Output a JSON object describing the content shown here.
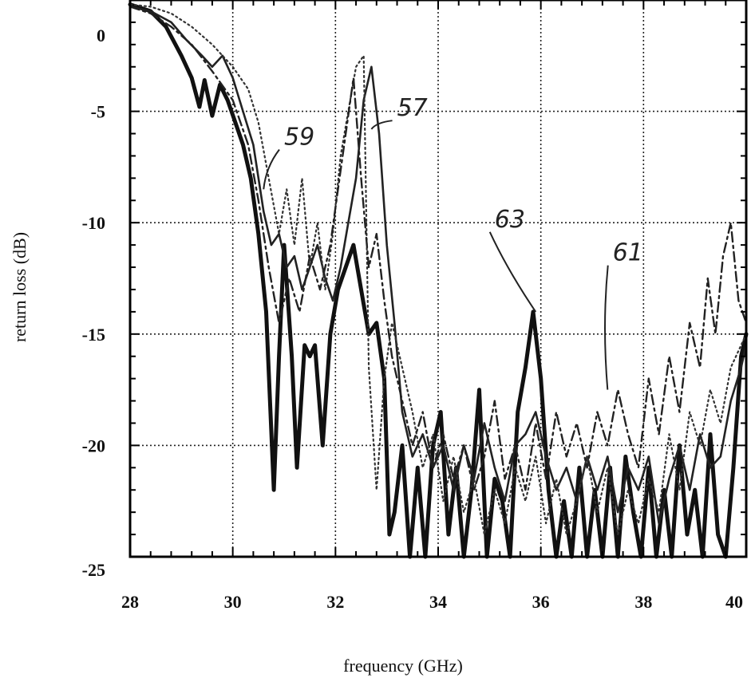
{
  "chart_data": {
    "type": "line",
    "title": "",
    "xlabel": "frequency (GHz)",
    "ylabel": "return loss (dB)",
    "xlim": [
      28,
      40
    ],
    "ylim": [
      -25,
      0
    ],
    "xticks": [
      28,
      30,
      32,
      34,
      36,
      38,
      40
    ],
    "yticks": [
      0,
      -5,
      -10,
      -15,
      -20,
      -25
    ],
    "xtick_labels": [
      "28",
      "30",
      "32",
      "34",
      "36",
      "38",
      "40"
    ],
    "ytick_labels": [
      "0",
      "-5",
      "-10",
      "-15",
      "-20",
      "-25"
    ],
    "grid": true,
    "legend": "none",
    "annotations": [
      {
        "text": "59",
        "x": 31.0,
        "y": -6.5,
        "target_x": 30.6,
        "target_y": -8.5
      },
      {
        "text": "57",
        "x": 33.2,
        "y": -5.2,
        "target_x": 32.7,
        "target_y": -5.8
      },
      {
        "text": "63",
        "x": 35.1,
        "y": -10.2,
        "target_x": 35.9,
        "target_y": -14.0
      },
      {
        "text": "61",
        "x": 37.4,
        "y": -11.7,
        "target_x": 37.3,
        "target_y": -17.5
      }
    ],
    "series": [
      {
        "style": "solid-thick",
        "color": "#111111",
        "x": [
          28.0,
          28.4,
          28.7,
          29.0,
          29.2,
          29.35,
          29.45,
          29.6,
          29.75,
          29.9,
          30.05,
          30.2,
          30.35,
          30.5,
          30.65,
          30.8,
          30.9,
          31.0,
          31.15,
          31.25,
          31.4,
          31.5,
          31.6,
          31.75,
          31.9,
          32.05,
          32.2,
          32.35,
          32.5,
          32.65,
          32.8,
          32.95,
          33.05,
          33.15,
          33.3,
          33.45,
          33.6,
          33.75,
          33.9,
          34.05,
          34.2,
          34.35,
          34.5,
          34.65,
          34.8,
          34.95,
          35.1,
          35.25,
          35.4,
          35.55,
          35.7,
          35.85,
          36.0,
          36.15,
          36.3,
          36.45,
          36.6,
          36.75,
          36.9,
          37.05,
          37.2,
          37.35,
          37.5,
          37.65,
          37.8,
          37.95,
          38.1,
          38.25,
          38.4,
          38.55,
          38.7,
          38.85,
          39.0,
          39.15,
          39.3,
          39.45,
          39.6,
          39.75,
          39.9,
          40.0
        ],
        "y": [
          -0.2,
          -0.5,
          -1.2,
          -2.5,
          -3.5,
          -4.8,
          -3.6,
          -5.2,
          -3.8,
          -4.5,
          -5.5,
          -6.5,
          -8.0,
          -10.5,
          -14.0,
          -22.0,
          -16.0,
          -11.0,
          -16.0,
          -21.0,
          -15.5,
          -16.0,
          -15.5,
          -20.0,
          -15.0,
          -13.0,
          -12.0,
          -11.0,
          -13.0,
          -15.0,
          -14.5,
          -17.0,
          -24.0,
          -23.0,
          -20.0,
          -25.0,
          -21.0,
          -25.0,
          -20.0,
          -18.5,
          -24.0,
          -21.0,
          -25.0,
          -22.0,
          -17.5,
          -25.0,
          -21.5,
          -22.5,
          -25.0,
          -18.5,
          -16.5,
          -14.0,
          -17.0,
          -22.0,
          -25.0,
          -22.5,
          -25.0,
          -21.0,
          -25.0,
          -22.0,
          -25.0,
          -21.0,
          -25.0,
          -20.5,
          -23.0,
          -25.0,
          -21.0,
          -25.0,
          -22.0,
          -25.0,
          -20.0,
          -24.0,
          -22.0,
          -25.0,
          -19.5,
          -24.0,
          -25.0,
          -21.0,
          -16.0,
          -15.0
        ]
      },
      {
        "style": "solid",
        "color": "#222222",
        "x": [
          28.0,
          28.4,
          28.8,
          29.1,
          29.4,
          29.6,
          29.8,
          30.0,
          30.2,
          30.4,
          30.6,
          30.75,
          30.9,
          31.05,
          31.2,
          31.35,
          31.5,
          31.65,
          31.8,
          31.95,
          32.1,
          32.25,
          32.4,
          32.55,
          32.7,
          32.85,
          33.0,
          33.15,
          33.3,
          33.5,
          33.7,
          33.9,
          34.1,
          34.3,
          34.5,
          34.7,
          34.9,
          35.1,
          35.3,
          35.5,
          35.7,
          35.9,
          36.1,
          36.3,
          36.5,
          36.7,
          36.9,
          37.1,
          37.3,
          37.5,
          37.7,
          37.9,
          38.1,
          38.3,
          38.5,
          38.7,
          38.9,
          39.1,
          39.3,
          39.5,
          39.7,
          39.9,
          40.0
        ],
        "y": [
          -0.3,
          -0.5,
          -1.0,
          -1.8,
          -2.5,
          -3.0,
          -2.5,
          -3.5,
          -5.0,
          -6.5,
          -9.5,
          -11.0,
          -10.5,
          -12.0,
          -11.5,
          -13.0,
          -12.0,
          -11.0,
          -12.5,
          -13.5,
          -12.0,
          -10.0,
          -8.0,
          -4.5,
          -3.0,
          -6.0,
          -11.0,
          -14.5,
          -18.5,
          -20.5,
          -19.5,
          -21.0,
          -20.0,
          -22.0,
          -20.0,
          -21.5,
          -19.0,
          -21.0,
          -22.5,
          -20.0,
          -19.5,
          -18.5,
          -20.5,
          -22.0,
          -21.0,
          -22.5,
          -20.5,
          -22.0,
          -20.5,
          -23.0,
          -21.0,
          -22.0,
          -20.5,
          -23.5,
          -21.5,
          -20.0,
          -22.0,
          -19.5,
          -21.0,
          -20.5,
          -18.0,
          -16.5,
          -15.5
        ]
      },
      {
        "style": "dotted",
        "color": "#333333",
        "x": [
          28.0,
          28.4,
          28.8,
          29.2,
          29.6,
          30.0,
          30.3,
          30.5,
          30.7,
          30.9,
          31.05,
          31.2,
          31.35,
          31.5,
          31.65,
          31.8,
          31.95,
          32.1,
          32.25,
          32.4,
          32.55,
          32.65,
          32.8,
          32.95,
          33.1,
          33.3,
          33.5,
          33.7,
          33.9,
          34.1,
          34.3,
          34.5,
          34.7,
          34.9,
          35.1,
          35.3,
          35.5,
          35.7,
          35.9,
          36.1,
          36.3,
          36.5,
          36.7,
          36.9,
          37.1,
          37.3,
          37.5,
          37.7,
          37.9,
          38.1,
          38.3,
          38.5,
          38.7,
          38.9,
          39.1,
          39.3,
          39.5,
          39.7,
          39.9,
          40.0
        ],
        "y": [
          -0.2,
          -0.3,
          -0.6,
          -1.2,
          -2.0,
          -3.0,
          -4.0,
          -5.5,
          -8.0,
          -10.5,
          -8.5,
          -11.0,
          -8.0,
          -12.0,
          -10.0,
          -13.0,
          -10.5,
          -7.0,
          -5.0,
          -3.0,
          -2.5,
          -16.5,
          -22.0,
          -17.0,
          -14.5,
          -16.5,
          -18.5,
          -21.0,
          -19.5,
          -22.5,
          -20.5,
          -23.0,
          -21.5,
          -24.0,
          -22.0,
          -23.5,
          -21.0,
          -22.5,
          -20.5,
          -23.5,
          -21.5,
          -24.0,
          -22.5,
          -20.5,
          -23.0,
          -21.0,
          -24.0,
          -22.0,
          -23.5,
          -21.5,
          -23.0,
          -19.5,
          -22.0,
          -18.5,
          -20.0,
          -17.5,
          -19.0,
          -16.5,
          -15.5,
          -15.0
        ]
      },
      {
        "style": "dash-dot",
        "color": "#222222",
        "x": [
          28.0,
          28.4,
          28.8,
          29.2,
          29.6,
          30.0,
          30.3,
          30.5,
          30.7,
          30.9,
          31.1,
          31.3,
          31.5,
          31.7,
          31.9,
          32.05,
          32.2,
          32.35,
          32.5,
          32.65,
          32.8,
          32.95,
          33.1,
          33.3,
          33.5,
          33.7,
          33.9,
          34.1,
          34.3,
          34.5,
          34.7,
          34.9,
          35.1,
          35.3,
          35.5,
          35.7,
          35.9,
          36.1,
          36.3,
          36.5,
          36.7,
          36.9,
          37.1,
          37.3,
          37.5,
          37.7,
          37.9,
          38.1,
          38.3,
          38.5,
          38.7,
          38.9,
          39.1,
          39.25,
          39.4,
          39.55,
          39.7,
          39.85,
          40.0
        ],
        "y": [
          -0.3,
          -0.6,
          -1.2,
          -2.0,
          -3.2,
          -4.5,
          -6.5,
          -9.0,
          -12.0,
          -14.5,
          -12.5,
          -14.0,
          -11.5,
          -13.0,
          -11.0,
          -8.5,
          -6.0,
          -3.5,
          -8.0,
          -12.0,
          -10.5,
          -13.5,
          -16.0,
          -18.0,
          -20.0,
          -18.5,
          -21.0,
          -19.5,
          -21.5,
          -20.0,
          -22.0,
          -20.5,
          -18.0,
          -21.5,
          -20.0,
          -22.0,
          -19.0,
          -21.5,
          -18.5,
          -20.5,
          -19.0,
          -21.0,
          -18.5,
          -20.0,
          -17.5,
          -19.5,
          -21.0,
          -17.0,
          -19.5,
          -16.0,
          -18.5,
          -14.5,
          -16.5,
          -12.5,
          -15.0,
          -11.5,
          -10.0,
          -13.5,
          -14.5
        ]
      }
    ]
  }
}
